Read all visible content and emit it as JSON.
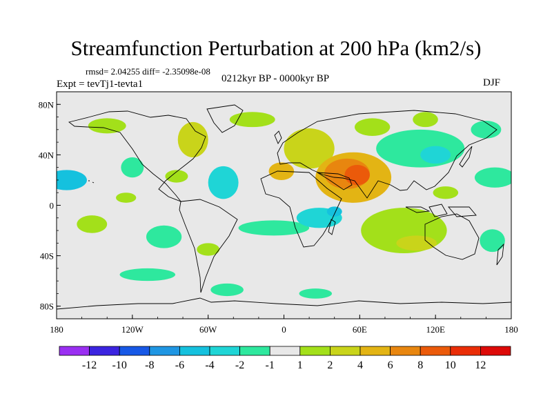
{
  "title": "Streamfunction Perturbation at 200 hPa (km2/s)",
  "rmsd_line": "rmsd= 2.04255  diff= -2.35098e-08",
  "experiment": "Expt = tevTj1-tevta1",
  "period": "0212kyr BP - 0000kyr BP",
  "season": "DJF",
  "lat_ticks": [
    "80N",
    "40N",
    "0",
    "40S",
    "80S"
  ],
  "lat_values": [
    80,
    40,
    0,
    -40,
    -80
  ],
  "lon_ticks": [
    "180",
    "120W",
    "60W",
    "0",
    "60E",
    "120E",
    "180"
  ],
  "lon_values": [
    -180,
    -120,
    -60,
    0,
    60,
    120,
    180
  ],
  "legend_labels": [
    "-12",
    "-10",
    "-8",
    "-6",
    "-4",
    "-2",
    "-1",
    "1",
    "2",
    "4",
    "6",
    "8",
    "10",
    "12"
  ],
  "palette": [
    "#9a2ff2",
    "#3b24e0",
    "#1758e6",
    "#1f96e3",
    "#15c1de",
    "#1fd5d6",
    "#2ee89e",
    "#e8e8e8",
    "#a3e01a",
    "#c9d41a",
    "#e3b414",
    "#e8860f",
    "#eb5a0a",
    "#ea2d07",
    "#dd0a08"
  ],
  "blobs": [
    {
      "lon": -172,
      "lat": 20,
      "a": 16,
      "b": 8,
      "level": -3
    },
    {
      "lon": -120,
      "lat": 30,
      "a": 9,
      "b": 8,
      "level": -1
    },
    {
      "lon": -125,
      "lat": 6,
      "a": 8,
      "b": 4,
      "level": 1
    },
    {
      "lon": -152,
      "lat": -15,
      "a": 12,
      "b": 7,
      "level": 1
    },
    {
      "lon": -95,
      "lat": -25,
      "a": 14,
      "b": 9,
      "level": -1
    },
    {
      "lon": -108,
      "lat": -55,
      "a": 22,
      "b": 5,
      "level": -1
    },
    {
      "lon": -140,
      "lat": 63,
      "a": 15,
      "b": 6,
      "level": 1
    },
    {
      "lon": -72,
      "lat": 52,
      "a": 12,
      "b": 14,
      "level": 2
    },
    {
      "lon": -85,
      "lat": 23,
      "a": 9,
      "b": 5,
      "level": 1
    },
    {
      "lon": -48,
      "lat": 18,
      "a": 12,
      "b": 13,
      "level": -2
    },
    {
      "lon": -60,
      "lat": -35,
      "a": 9,
      "b": 5,
      "level": 1
    },
    {
      "lon": -8,
      "lat": -18,
      "a": 28,
      "b": 6,
      "level": -1
    },
    {
      "lon": -45,
      "lat": -67,
      "a": 13,
      "b": 5,
      "level": -1
    },
    {
      "lon": 25,
      "lat": -70,
      "a": 13,
      "b": 4,
      "level": -1
    },
    {
      "lon": -25,
      "lat": 68,
      "a": 18,
      "b": 6,
      "level": 1
    },
    {
      "lon": 20,
      "lat": 45,
      "a": 20,
      "b": 16,
      "level": 2
    },
    {
      "lon": -2,
      "lat": 27,
      "a": 10,
      "b": 7,
      "level": 3
    },
    {
      "lon": 55,
      "lat": 22,
      "a": 30,
      "b": 20,
      "level": 3
    },
    {
      "lon": 50,
      "lat": 25,
      "a": 18,
      "b": 12,
      "level": 4
    },
    {
      "lon": 58,
      "lat": 24,
      "a": 10,
      "b": 8,
      "level": 5
    },
    {
      "lon": 28,
      "lat": -10,
      "a": 18,
      "b": 8,
      "level": -2
    },
    {
      "lon": 40,
      "lat": -5,
      "a": 6,
      "b": 4,
      "level": -3
    },
    {
      "lon": 70,
      "lat": 62,
      "a": 14,
      "b": 7,
      "level": 1
    },
    {
      "lon": 108,
      "lat": 45,
      "a": 35,
      "b": 15,
      "level": -1
    },
    {
      "lon": 120,
      "lat": 40,
      "a": 12,
      "b": 7,
      "level": -2
    },
    {
      "lon": 167,
      "lat": 22,
      "a": 16,
      "b": 8,
      "level": -1
    },
    {
      "lon": 112,
      "lat": 68,
      "a": 10,
      "b": 6,
      "level": 1
    },
    {
      "lon": 160,
      "lat": 60,
      "a": 12,
      "b": 7,
      "level": -1
    },
    {
      "lon": 95,
      "lat": -20,
      "a": 34,
      "b": 18,
      "level": 1
    },
    {
      "lon": 105,
      "lat": -30,
      "a": 16,
      "b": 6,
      "level": 2
    },
    {
      "lon": 128,
      "lat": 10,
      "a": 10,
      "b": 5,
      "level": 1
    },
    {
      "lon": 165,
      "lat": -28,
      "a": 10,
      "b": 9,
      "level": -1
    }
  ]
}
